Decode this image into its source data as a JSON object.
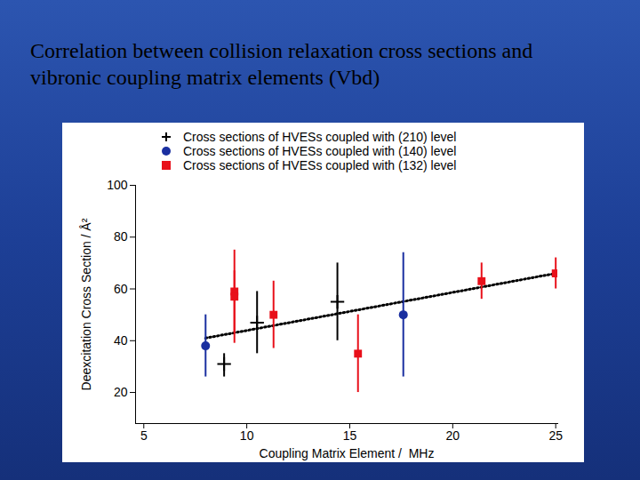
{
  "chart_data": {
    "type": "scatter",
    "title": "Correlation between collision relaxation cross sections and vibronic coupling matrix elements (Vbd)",
    "x_label": "Coupling Matrix Element /  MHz",
    "y_label": "Deexcitation Cross Section / Å²",
    "xlim": [
      4.6,
      25.1
    ],
    "ylim": [
      8,
      100
    ],
    "xticks": [
      5,
      10,
      15,
      20,
      25
    ],
    "yticks": [
      20,
      40,
      60,
      80,
      100
    ],
    "grid": false,
    "legend": "top",
    "series": [
      {
        "name": "Cross sections of HVESs coupled with (210) level",
        "color": "#000000",
        "marker": "plus",
        "x": [
          8.9,
          10.5,
          14.4
        ],
        "values": [
          31,
          47,
          55
        ],
        "error_low": [
          26,
          35,
          40
        ],
        "error_high": [
          35,
          59,
          70
        ]
      },
      {
        "name": "Cross sections of HVESs coupled with (140) level",
        "color": "#1a2fa0",
        "marker": "circle",
        "x": [
          8.0,
          17.6
        ],
        "values": [
          38,
          50
        ],
        "error_low": [
          26,
          26
        ],
        "error_high": [
          50,
          74
        ]
      },
      {
        "name": "Cross sections of HVESs coupled with (132) level",
        "color": "#e8101a",
        "marker": "square",
        "x": [
          9.4,
          9.4,
          11.3,
          15.4,
          21.4,
          25.0
        ],
        "values": [
          59,
          57,
          50,
          35,
          63,
          66
        ],
        "error_low": [
          43,
          39,
          37,
          20,
          56,
          60
        ],
        "error_high": [
          75,
          67,
          63,
          50,
          70,
          72
        ]
      }
    ],
    "fit": {
      "type": "line",
      "line_style": "dotted",
      "color": "#000000",
      "x": [
        8,
        25
      ],
      "values": [
        41,
        66
      ]
    }
  }
}
